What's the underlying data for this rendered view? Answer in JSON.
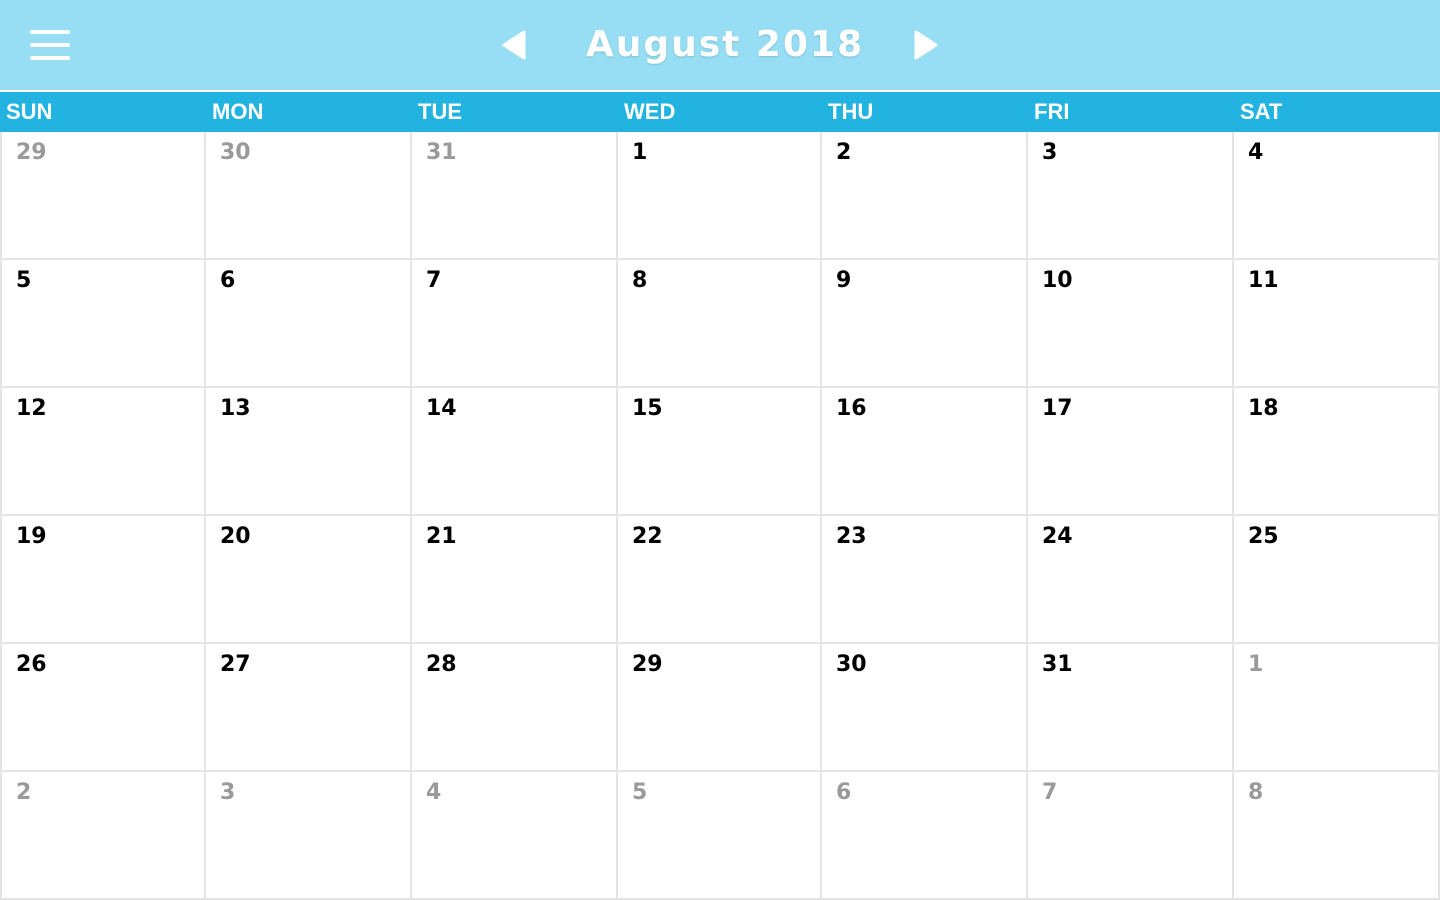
{
  "header": {
    "title": "August 2018",
    "menu_icon": "hamburger-menu-icon",
    "prev_icon": "left-triangle-icon",
    "next_icon": "right-triangle-icon"
  },
  "weekdays": [
    "SUN",
    "MON",
    "TUE",
    "WED",
    "THU",
    "FRI",
    "SAT"
  ],
  "weeks": [
    [
      {
        "day": "29",
        "muted": true
      },
      {
        "day": "30",
        "muted": true
      },
      {
        "day": "31",
        "muted": true
      },
      {
        "day": "1",
        "muted": false
      },
      {
        "day": "2",
        "muted": false
      },
      {
        "day": "3",
        "muted": false
      },
      {
        "day": "4",
        "muted": false
      }
    ],
    [
      {
        "day": "5",
        "muted": false
      },
      {
        "day": "6",
        "muted": false
      },
      {
        "day": "7",
        "muted": false
      },
      {
        "day": "8",
        "muted": false
      },
      {
        "day": "9",
        "muted": false
      },
      {
        "day": "10",
        "muted": false
      },
      {
        "day": "11",
        "muted": false
      }
    ],
    [
      {
        "day": "12",
        "muted": false
      },
      {
        "day": "13",
        "muted": false
      },
      {
        "day": "14",
        "muted": false
      },
      {
        "day": "15",
        "muted": false
      },
      {
        "day": "16",
        "muted": false
      },
      {
        "day": "17",
        "muted": false
      },
      {
        "day": "18",
        "muted": false
      }
    ],
    [
      {
        "day": "19",
        "muted": false
      },
      {
        "day": "20",
        "muted": false
      },
      {
        "day": "21",
        "muted": false
      },
      {
        "day": "22",
        "muted": false
      },
      {
        "day": "23",
        "muted": false
      },
      {
        "day": "24",
        "muted": false
      },
      {
        "day": "25",
        "muted": false
      }
    ],
    [
      {
        "day": "26",
        "muted": false
      },
      {
        "day": "27",
        "muted": false
      },
      {
        "day": "28",
        "muted": false
      },
      {
        "day": "29",
        "muted": false
      },
      {
        "day": "30",
        "muted": false
      },
      {
        "day": "31",
        "muted": false
      },
      {
        "day": "1",
        "muted": true
      }
    ],
    [
      {
        "day": "2",
        "muted": true
      },
      {
        "day": "3",
        "muted": true
      },
      {
        "day": "4",
        "muted": true
      },
      {
        "day": "5",
        "muted": true
      },
      {
        "day": "6",
        "muted": true
      },
      {
        "day": "7",
        "muted": true
      },
      {
        "day": "8",
        "muted": true
      }
    ]
  ],
  "colors": {
    "header_bg": "#97def4",
    "weekday_bg": "#22b3e1",
    "grid_line": "#e4e4e4",
    "day_text": "#000000",
    "muted_day_text": "#9a9a9a",
    "header_text": "#ffffff"
  }
}
